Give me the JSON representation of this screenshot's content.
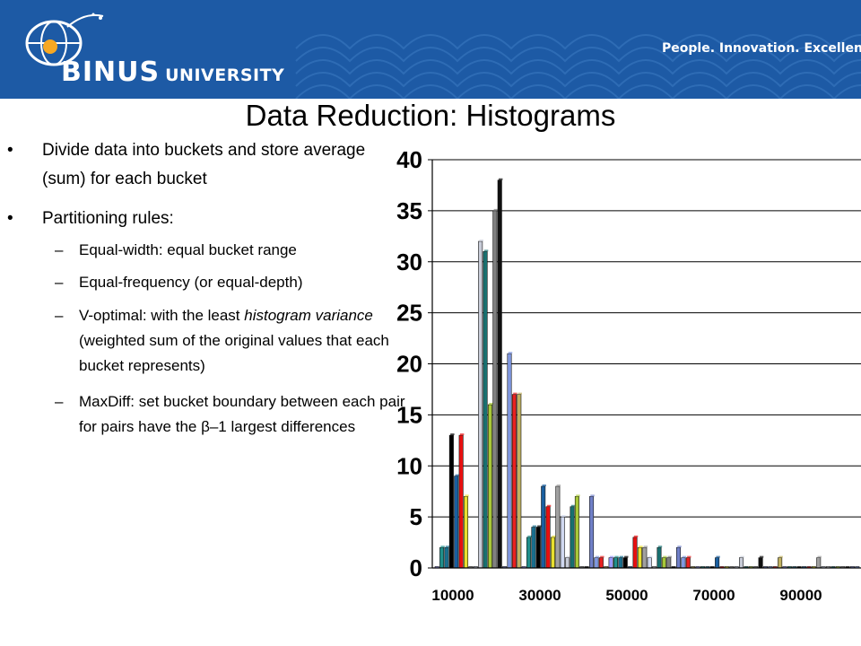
{
  "header": {
    "brand": "BINUS",
    "brand_suffix": "UNIVERSITY",
    "slogan": "People. Innovation. Excellence.",
    "colors": {
      "background": "#1d5aa5",
      "logo_accent": "#f7a823"
    },
    "icons": [
      "globe-logo-icon"
    ]
  },
  "title": "Data Reduction: Histograms",
  "bullets": {
    "item1": "Divide data into buckets and store average (sum) for each bucket",
    "item2": "Partitioning rules:",
    "sub1": "Equal-width: equal bucket range",
    "sub2": "Equal-frequency (or equal-depth)",
    "sub3": {
      "pre": "V-optimal: with the least ",
      "em1": "histogram variance",
      "post": " (weighted sum of the original values that each bucket represents)"
    },
    "sub4": "MaxDiff: set bucket boundary between each pair for pairs have the β–1 largest differences"
  },
  "chart_data": {
    "type": "bar",
    "x_ticks": [
      "10000",
      "30000",
      "50000",
      "70000",
      "90000"
    ],
    "y_ticks": [
      "0",
      "5",
      "10",
      "15",
      "20",
      "25",
      "30",
      "35",
      "40"
    ],
    "ylim": [
      0,
      40
    ],
    "grid": true,
    "legend": "none",
    "values": [
      0,
      2,
      2,
      13,
      9,
      13,
      7,
      0,
      0,
      32,
      31,
      16,
      35,
      38,
      0,
      21,
      17,
      17,
      0,
      3,
      4,
      4,
      8,
      6,
      3,
      8,
      5,
      1,
      6,
      7,
      0,
      0,
      7,
      1,
      1,
      0,
      1,
      1,
      1,
      1,
      0,
      3,
      2,
      2,
      1,
      0,
      2,
      1,
      1,
      0,
      2,
      1,
      1,
      0,
      0,
      0,
      0,
      0,
      1,
      0,
      0,
      0,
      0,
      1,
      0,
      0,
      0,
      1,
      0,
      0,
      0,
      1,
      0,
      0,
      0,
      0,
      0,
      0,
      0,
      1,
      0,
      0,
      0,
      0,
      0,
      0,
      0,
      0
    ],
    "colors": [
      "#9999ff",
      "#20908c",
      "#1a6f8f",
      "#000000",
      "#1a5fa0",
      "#e81010",
      "#e8e030",
      "#a0a0a0",
      "#d0d8f0",
      "#c8ccd8",
      "#187070",
      "#a8c838",
      "#808080",
      "#101010",
      "#7080c8",
      "#8098e0",
      "#e82020",
      "#c0b060"
    ]
  }
}
